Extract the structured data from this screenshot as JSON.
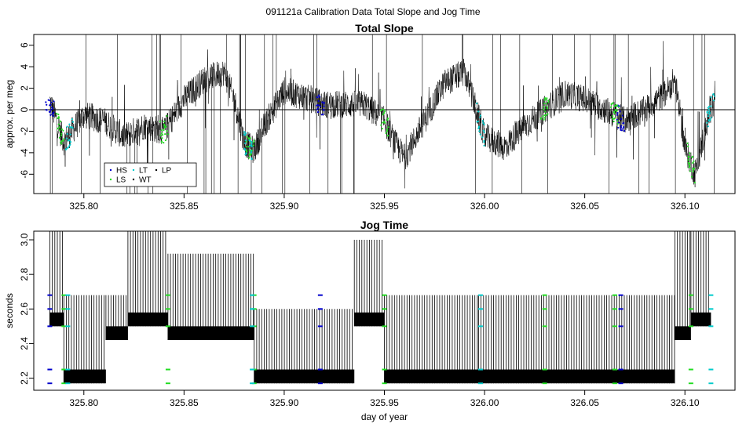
{
  "figure": {
    "suptitle": "091121a   Calibration Data Total Slope and Jog Time"
  },
  "chart_data": [
    {
      "type": "line",
      "title": "Total Slope",
      "xlabel": "",
      "ylabel": "approx. per meg",
      "xlim": [
        325.775,
        326.125
      ],
      "ylim": [
        -7.8,
        7.0
      ],
      "x_ticks": [
        "325.80",
        "325.85",
        "325.90",
        "325.95",
        "326.00",
        "326.05",
        "326.10"
      ],
      "x_tick_values": [
        325.8,
        325.85,
        325.9,
        325.95,
        326.0,
        326.05,
        326.1
      ],
      "y_ticks": [
        "-6",
        "-4",
        "-2",
        "0",
        "2",
        "4",
        "6"
      ],
      "y_tick_values": [
        -6,
        -4,
        -2,
        0,
        2,
        4,
        6
      ],
      "reference_line_y": 0,
      "x_range": [
        325.783,
        326.115
      ],
      "series": [
        {
          "name": "WT",
          "color": "#000000",
          "x": [
            325.783,
            325.79,
            325.8,
            325.81,
            325.82,
            325.83,
            325.84,
            325.85,
            325.86,
            325.87,
            325.875,
            325.88,
            325.885,
            325.89,
            325.9,
            325.91,
            325.92,
            325.93,
            325.94,
            325.95,
            325.955,
            325.96,
            325.97,
            325.98,
            325.99,
            326.0,
            326.01,
            326.02,
            326.03,
            326.04,
            326.05,
            326.06,
            326.07,
            326.08,
            326.09,
            326.095,
            326.1,
            326.105,
            326.11,
            326.115
          ],
          "y": [
            0.8,
            -3.0,
            -0.5,
            -1.0,
            -2.5,
            -1.5,
            -2.0,
            1.0,
            2.8,
            3.5,
            1.0,
            -3.0,
            -3.8,
            -1.5,
            1.8,
            1.2,
            0.5,
            0.5,
            0.5,
            -1.0,
            -3.0,
            -4.5,
            -1.0,
            2.5,
            3.5,
            -2.5,
            -3.5,
            -1.5,
            0.0,
            1.5,
            1.0,
            0.0,
            -1.0,
            0.0,
            1.5,
            2.8,
            -3.5,
            -6.0,
            -2.0,
            1.5
          ]
        }
      ],
      "gas_markers": [
        {
          "name": "HS",
          "color": "#0000cc",
          "x": [
            325.783,
            325.918,
            326.068
          ]
        },
        {
          "name": "LS",
          "color": "#22dd22",
          "x": [
            325.788,
            325.84,
            325.883,
            325.95,
            326.03,
            326.065,
            326.103
          ]
        },
        {
          "name": "LT",
          "color": "#00cccc",
          "x": [
            325.793,
            325.882,
            325.998,
            326.113
          ]
        },
        {
          "name": "WT",
          "color": "#000000",
          "x": []
        },
        {
          "name": "LP",
          "color": "#000000",
          "x": []
        }
      ],
      "legend": {
        "position": "bottom-left",
        "entries": [
          "HS",
          "LT",
          "LP",
          "LS",
          "WT"
        ]
      }
    },
    {
      "type": "line",
      "title": "Jog Time",
      "xlabel": "day of year",
      "ylabel": "seconds",
      "xlim": [
        325.775,
        326.125
      ],
      "ylim": [
        2.13,
        3.05
      ],
      "x_ticks": [
        "325.80",
        "325.85",
        "325.90",
        "325.95",
        "326.00",
        "326.05",
        "326.10"
      ],
      "x_tick_values": [
        325.8,
        325.85,
        325.9,
        325.95,
        326.0,
        326.05,
        326.1
      ],
      "y_ticks": [
        "2.2",
        "2.4",
        "2.6",
        "2.8",
        "3.0"
      ],
      "y_tick_values": [
        2.2,
        2.4,
        2.6,
        2.8,
        3.0
      ],
      "segments": [
        {
          "x0": 325.783,
          "x1": 325.79,
          "lo": 2.5,
          "hi": 3.05
        },
        {
          "x0": 325.79,
          "x1": 325.811,
          "lo": 2.17,
          "hi": 2.68
        },
        {
          "x0": 325.811,
          "x1": 325.822,
          "lo": 2.42,
          "hi": 2.68
        },
        {
          "x0": 325.822,
          "x1": 325.842,
          "lo": 2.5,
          "hi": 3.05
        },
        {
          "x0": 325.842,
          "x1": 325.885,
          "lo": 2.42,
          "hi": 2.92
        },
        {
          "x0": 325.885,
          "x1": 325.935,
          "lo": 2.17,
          "hi": 2.6
        },
        {
          "x0": 325.935,
          "x1": 325.95,
          "lo": 2.5,
          "hi": 3.0
        },
        {
          "x0": 325.95,
          "x1": 325.997,
          "lo": 2.17,
          "hi": 2.68
        },
        {
          "x0": 325.997,
          "x1": 326.095,
          "lo": 2.17,
          "hi": 2.68
        },
        {
          "x0": 326.095,
          "x1": 326.103,
          "lo": 2.42,
          "hi": 3.05
        },
        {
          "x0": 326.103,
          "x1": 326.113,
          "lo": 2.5,
          "hi": 3.05
        }
      ],
      "gas_markers": [
        {
          "name": "HS",
          "color": "#0000cc",
          "x": [
            325.783,
            325.918,
            326.068
          ]
        },
        {
          "name": "LS",
          "color": "#22dd22",
          "x": [
            325.79,
            325.842,
            325.885,
            325.95,
            326.03,
            326.065,
            326.103
          ]
        },
        {
          "name": "LT",
          "color": "#00cccc",
          "x": [
            325.792,
            325.884,
            325.998,
            326.113
          ]
        }
      ]
    }
  ]
}
